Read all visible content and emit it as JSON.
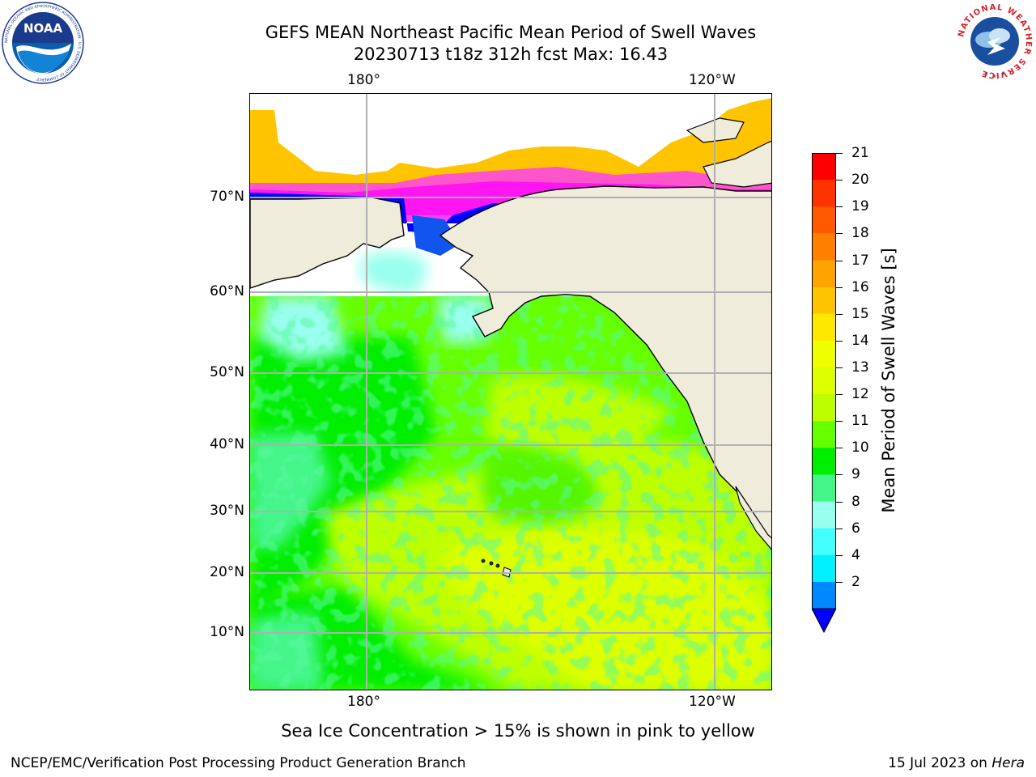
{
  "header": {
    "title_line1": "GEFS MEAN Northeast Pacific Mean Period of Swell Waves",
    "title_line2": "20230713 t18z 312h fcst   Max: 16.43"
  },
  "logos": {
    "left": "noaa-logo",
    "right": "nws-logo",
    "noaa_text": "NOAA",
    "noaa_ring": "NATIONAL OCEANIC AND ATMOSPHERIC ADMINISTRATION · U.S. DEPARTMENT OF COMMERCE",
    "nws_ring": "NATIONAL WEATHER SERVICE"
  },
  "map": {
    "lon_labels": [
      "180°",
      "120°W"
    ],
    "lat_labels": [
      "70°N",
      "60°N",
      "50°N",
      "40°N",
      "30°N",
      "20°N",
      "10°N"
    ],
    "land_color": "#efecdc",
    "grid_color": "#b0b0b0"
  },
  "colorbar": {
    "label": "Mean Period of Swell Waves [s]",
    "ticks": [
      "21",
      "20",
      "19",
      "18",
      "17",
      "16",
      "15",
      "14",
      "13",
      "12",
      "11",
      "10",
      "9",
      "8",
      "6",
      "4",
      "2"
    ],
    "colors_top_to_bottom": [
      "#ff0000",
      "#ff3300",
      "#ff5a00",
      "#ff7f00",
      "#ffa300",
      "#ffc400",
      "#ffe800",
      "#f0ff00",
      "#ddff00",
      "#beff00",
      "#66ff00",
      "#00ee00",
      "#44f58a",
      "#99ffee",
      "#44ffff",
      "#00f0ff",
      "#0088ff"
    ],
    "extend_color": "#0000ff"
  },
  "footer": {
    "ice_note": "Sea Ice Concentration > 15% is shown in pink to yellow",
    "left": "NCEP/EMC/Verification Post Processing Product Generation Branch",
    "right_date": "15 Jul 2023 on",
    "right_machine": "Hera"
  }
}
